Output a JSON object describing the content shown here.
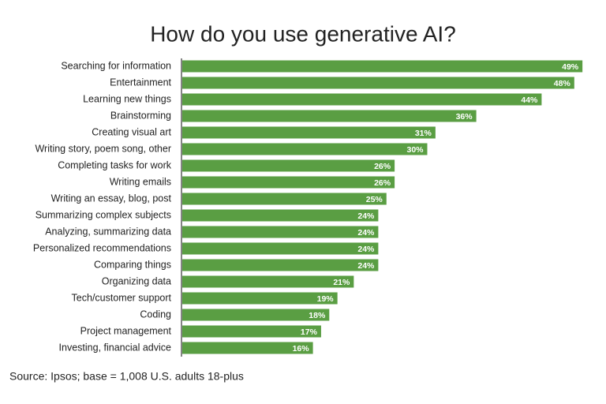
{
  "chart_data": {
    "type": "bar",
    "orientation": "horizontal",
    "title": "How do you use generative AI?",
    "categories": [
      "Searching for information",
      "Entertainment",
      "Learning new things",
      "Brainstorming",
      "Creating visual art",
      "Writing story, poem song, other",
      "Completing tasks for work",
      "Writing emails",
      "Writing an essay, blog, post",
      "Summarizing complex subjects",
      "Analyzing, summarizing data",
      "Personalized recommendations",
      "Comparing things",
      "Organizing data",
      "Tech/customer support",
      "Coding",
      "Project management",
      "Investing, financial advice"
    ],
    "values": [
      49,
      48,
      44,
      36,
      31,
      30,
      26,
      26,
      25,
      24,
      24,
      24,
      24,
      21,
      19,
      18,
      17,
      16
    ],
    "value_labels": [
      "49%",
      "48%",
      "44%",
      "36%",
      "31%",
      "30%",
      "26%",
      "26%",
      "25%",
      "24%",
      "24%",
      "24%",
      "24%",
      "21%",
      "19%",
      "18%",
      "17%",
      "16%"
    ],
    "color": "#5a9e43",
    "source": "Source: Ipsos; base = 1,008 U.S. adults 18-plus"
  }
}
